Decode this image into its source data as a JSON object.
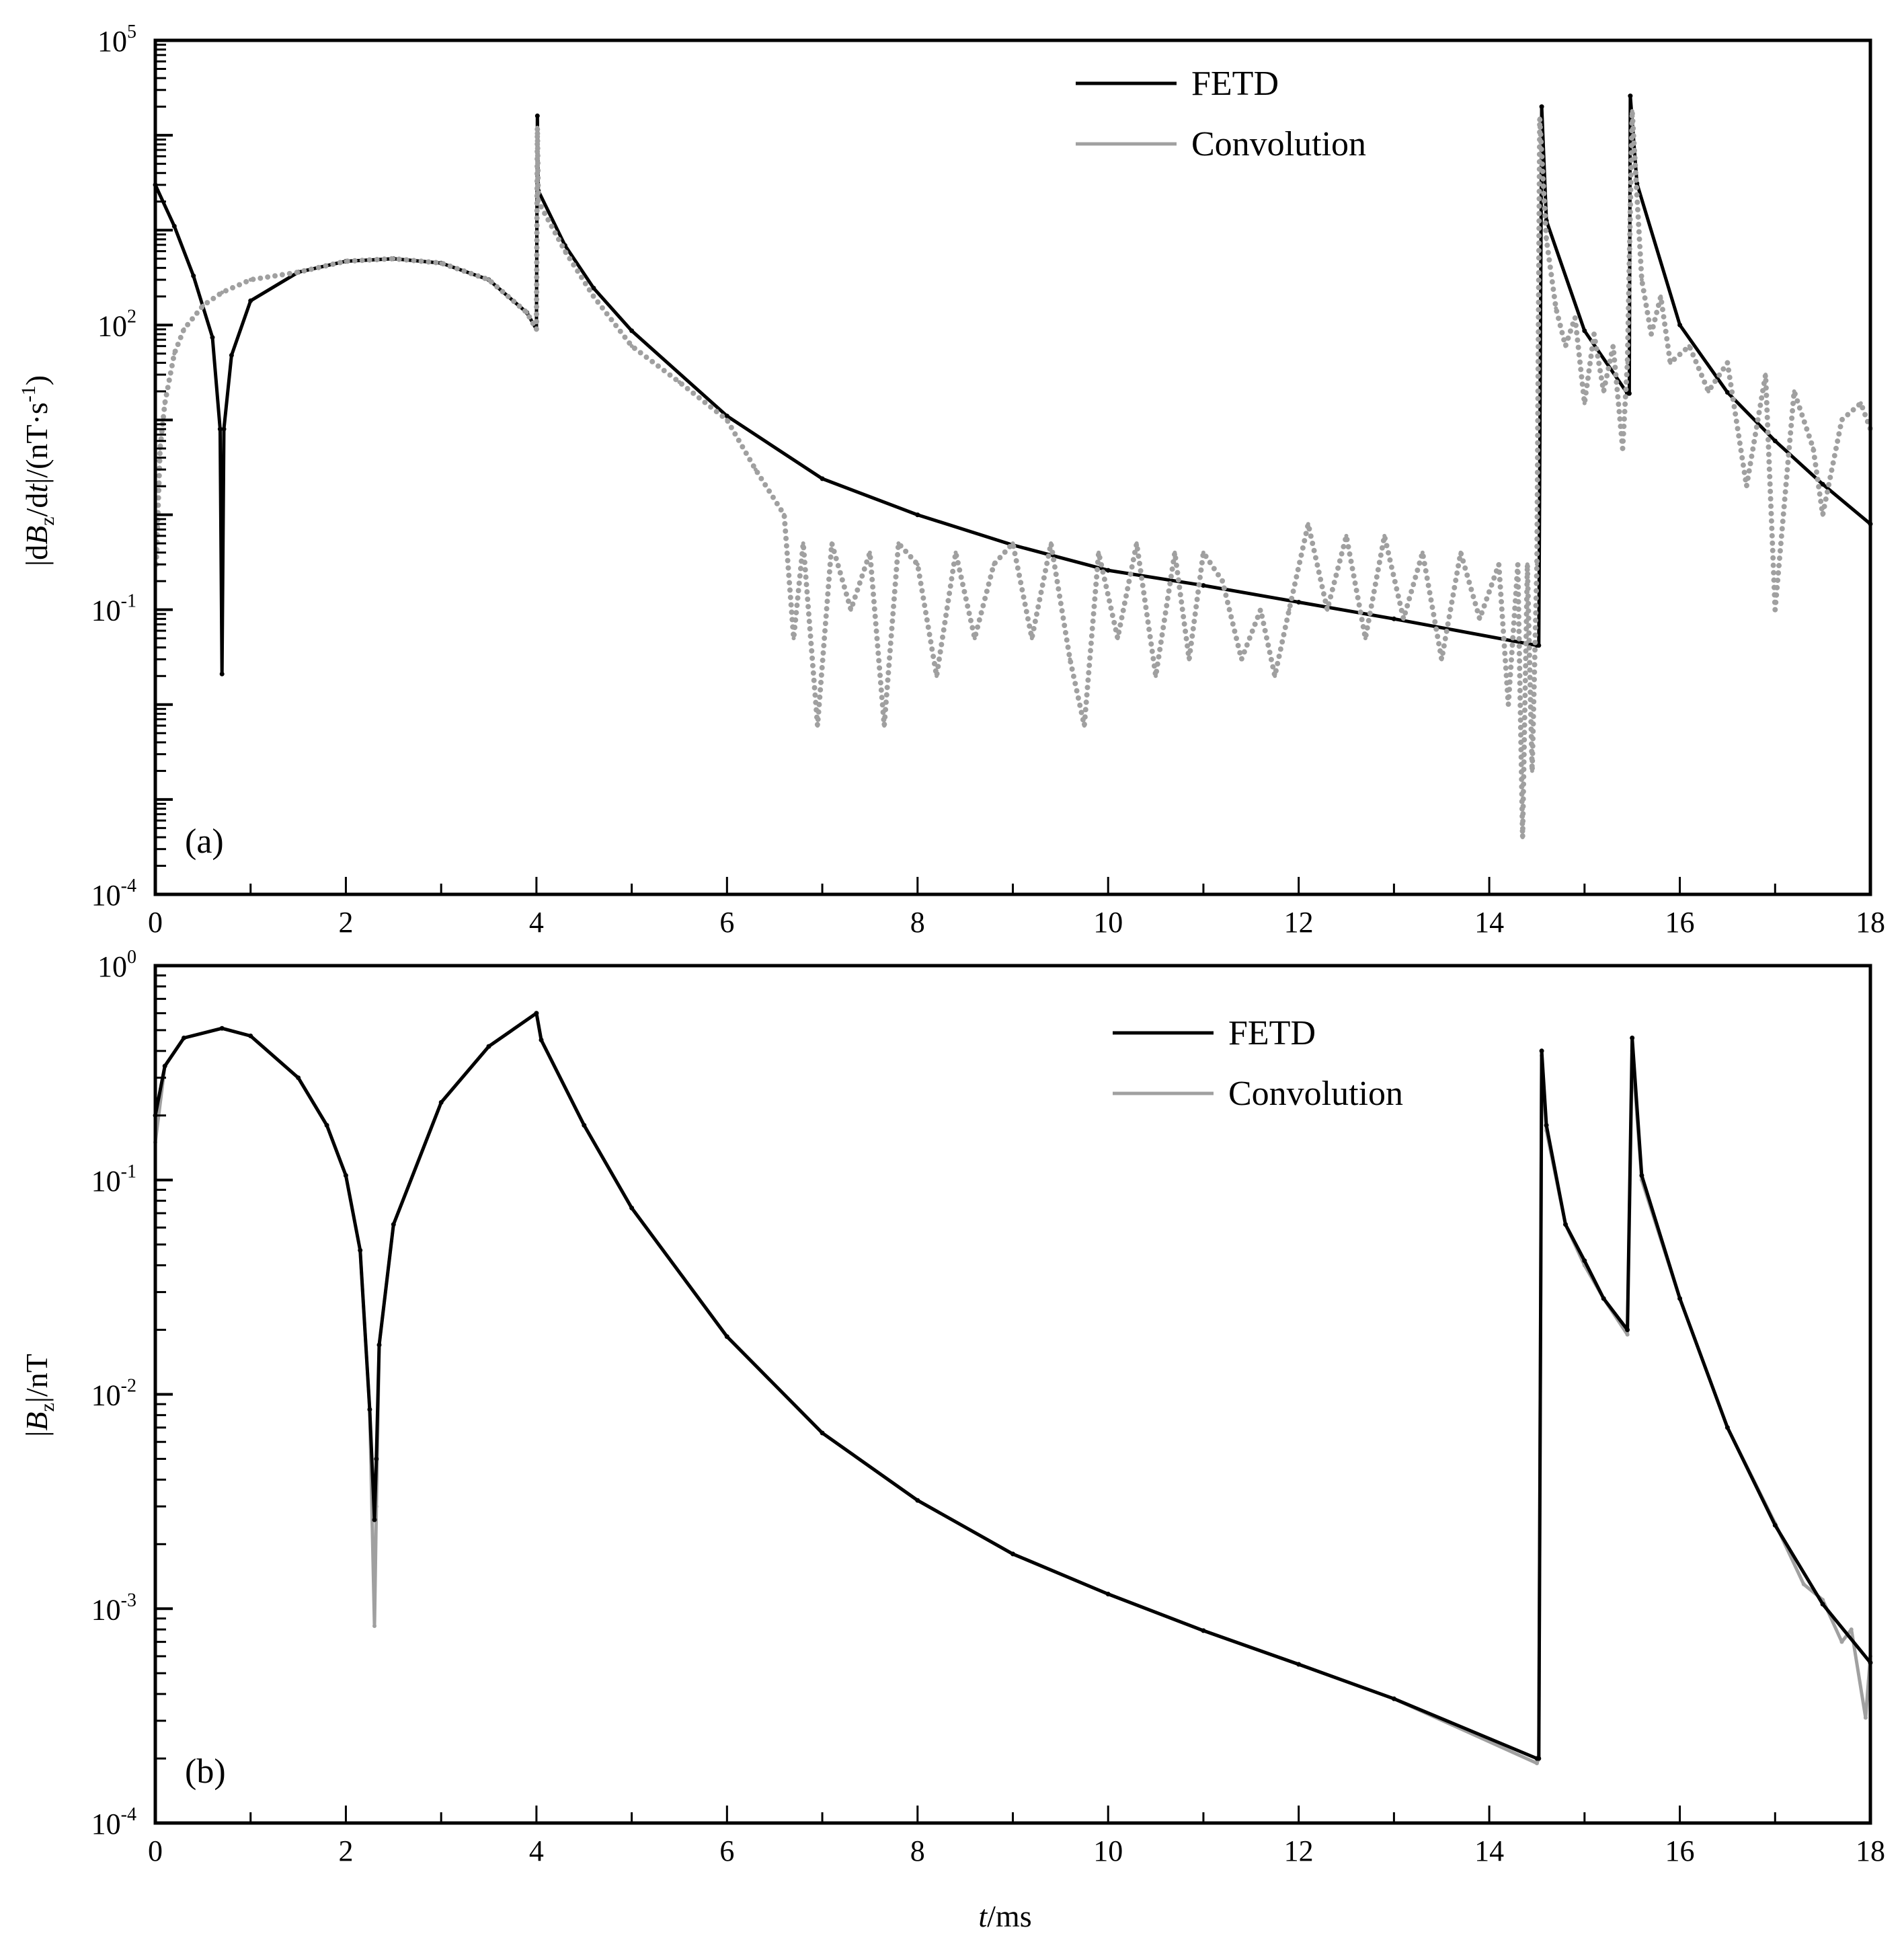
{
  "chart_data": [
    {
      "type": "line",
      "panel_label": "(a)",
      "ylabel": "|dBz/dt|/(nT·s-1)",
      "ylabel_parts": {
        "pre": "|d",
        "B": "B",
        "z": "z",
        "mid": "/d",
        "t": "t",
        "post": "|/(nT·s",
        "exp": "-1",
        "close": ")"
      },
      "xlabel": "",
      "y_scale": "log",
      "ylim": [
        0.0001,
        100000
      ],
      "xlim": [
        0,
        18
      ],
      "y_tick_labels": [
        {
          "base": "10",
          "exp": "5",
          "value": 100000
        },
        {
          "base": "10",
          "exp": "2",
          "value": 100
        },
        {
          "base": "10",
          "exp": "-1",
          "value": 0.1
        },
        {
          "base": "10",
          "exp": "-4",
          "value": 0.0001
        }
      ],
      "x_tick_labels": [
        "0",
        "2",
        "4",
        "6",
        "8",
        "10",
        "12",
        "14",
        "16",
        "18"
      ],
      "legend": {
        "placement": "top-right",
        "entries": [
          "FETD",
          "Convolution"
        ]
      },
      "grid": false,
      "series": [
        {
          "name": "FETD",
          "color": "#000000",
          "points": [
            [
              0,
              3000
            ],
            [
              0.2,
              1100
            ],
            [
              0.4,
              330
            ],
            [
              0.6,
              74
            ],
            [
              0.68,
              8
            ],
            [
              0.7,
              0.021
            ],
            [
              0.72,
              8
            ],
            [
              0.8,
              48
            ],
            [
              1.0,
              180
            ],
            [
              1.5,
              360
            ],
            [
              2.0,
              470
            ],
            [
              2.5,
              500
            ],
            [
              3.0,
              450
            ],
            [
              3.5,
              300
            ],
            [
              3.9,
              135
            ],
            [
              4.0,
              90
            ],
            [
              4.01,
              16000
            ],
            [
              4.02,
              2600
            ],
            [
              4.3,
              690
            ],
            [
              4.6,
              245
            ],
            [
              5.0,
              87
            ],
            [
              6.0,
              11
            ],
            [
              7.0,
              2.4
            ],
            [
              8.0,
              1.0
            ],
            [
              9.0,
              0.48
            ],
            [
              10.0,
              0.26
            ],
            [
              11.0,
              0.18
            ],
            [
              12.0,
              0.12
            ],
            [
              13.0,
              0.08
            ],
            [
              14.5,
              0.042
            ],
            [
              14.52,
              0.042
            ],
            [
              14.55,
              20000
            ],
            [
              14.6,
              1260
            ],
            [
              15.0,
              87
            ],
            [
              15.45,
              19
            ],
            [
              15.47,
              19
            ],
            [
              15.48,
              26000
            ],
            [
              15.55,
              3100
            ],
            [
              16.0,
              100
            ],
            [
              16.5,
              19.5
            ],
            [
              17.0,
              6
            ],
            [
              17.5,
              2.1
            ],
            [
              18.0,
              0.8
            ]
          ]
        },
        {
          "name": "Convolution",
          "color": "#a0a0a0",
          "points": [
            [
              0.01,
              0.3
            ],
            [
              0.05,
              5
            ],
            [
              0.1,
              15
            ],
            [
              0.2,
              50
            ],
            [
              0.3,
              90
            ],
            [
              0.5,
              160
            ],
            [
              0.7,
              220
            ],
            [
              1.0,
              300
            ],
            [
              1.5,
              360
            ],
            [
              2.0,
              470
            ],
            [
              2.5,
              500
            ],
            [
              3.0,
              450
            ],
            [
              3.5,
              300
            ],
            [
              3.9,
              135
            ],
            [
              4.0,
              90
            ],
            [
              4.01,
              12000
            ],
            [
              4.02,
              2000
            ],
            [
              4.3,
              600
            ],
            [
              4.6,
              200
            ],
            [
              5.0,
              60
            ],
            [
              5.5,
              25
            ],
            [
              6.0,
              10
            ],
            [
              6.3,
              3
            ],
            [
              6.6,
              1
            ],
            [
              6.7,
              0.05
            ],
            [
              6.8,
              0.5
            ],
            [
              6.95,
              0.006
            ],
            [
              7.1,
              0.5
            ],
            [
              7.3,
              0.1
            ],
            [
              7.5,
              0.4
            ],
            [
              7.65,
              0.006
            ],
            [
              7.8,
              0.5
            ],
            [
              8.0,
              0.3
            ],
            [
              8.2,
              0.02
            ],
            [
              8.4,
              0.4
            ],
            [
              8.6,
              0.05
            ],
            [
              8.8,
              0.3
            ],
            [
              9.0,
              0.5
            ],
            [
              9.2,
              0.05
            ],
            [
              9.4,
              0.5
            ],
            [
              9.6,
              0.03
            ],
            [
              9.75,
              0.006
            ],
            [
              9.9,
              0.4
            ],
            [
              10.1,
              0.05
            ],
            [
              10.3,
              0.5
            ],
            [
              10.5,
              0.02
            ],
            [
              10.7,
              0.4
            ],
            [
              10.85,
              0.03
            ],
            [
              11.0,
              0.4
            ],
            [
              11.2,
              0.2
            ],
            [
              11.4,
              0.03
            ],
            [
              11.6,
              0.1
            ],
            [
              11.75,
              0.02
            ],
            [
              11.9,
              0.1
            ],
            [
              12.1,
              0.8
            ],
            [
              12.3,
              0.1
            ],
            [
              12.5,
              0.6
            ],
            [
              12.7,
              0.05
            ],
            [
              12.9,
              0.6
            ],
            [
              13.1,
              0.08
            ],
            [
              13.3,
              0.4
            ],
            [
              13.5,
              0.03
            ],
            [
              13.7,
              0.4
            ],
            [
              13.9,
              0.08
            ],
            [
              14.1,
              0.3
            ],
            [
              14.2,
              0.01
            ],
            [
              14.3,
              0.3
            ],
            [
              14.35,
              0.0004
            ],
            [
              14.4,
              0.3
            ],
            [
              14.45,
              0.002
            ],
            [
              14.5,
              0.3
            ],
            [
              14.53,
              15000
            ],
            [
              14.6,
              800
            ],
            [
              14.7,
              150
            ],
            [
              14.8,
              60
            ],
            [
              14.9,
              120
            ],
            [
              15.0,
              15
            ],
            [
              15.1,
              80
            ],
            [
              15.2,
              20
            ],
            [
              15.3,
              60
            ],
            [
              15.4,
              5
            ],
            [
              15.45,
              40
            ],
            [
              15.5,
              18000
            ],
            [
              15.6,
              300
            ],
            [
              15.7,
              80
            ],
            [
              15.8,
              200
            ],
            [
              15.9,
              40
            ],
            [
              16.1,
              60
            ],
            [
              16.3,
              20
            ],
            [
              16.5,
              40
            ],
            [
              16.7,
              2
            ],
            [
              16.9,
              30
            ],
            [
              17.0,
              0.1
            ],
            [
              17.2,
              20
            ],
            [
              17.4,
              5
            ],
            [
              17.5,
              1
            ],
            [
              17.7,
              10
            ],
            [
              17.9,
              15
            ],
            [
              18.0,
              8
            ]
          ]
        }
      ]
    },
    {
      "type": "line",
      "panel_label": "(b)",
      "ylabel": "|Bz|/nT",
      "ylabel_parts": {
        "pre": "|",
        "B": "B",
        "z": "z",
        "post": "|/nT"
      },
      "xlabel": "t/ms",
      "xlabel_parts": {
        "t": "t",
        "unit": "/ms"
      },
      "y_scale": "log",
      "ylim": [
        0.0001,
        1
      ],
      "xlim": [
        0,
        18
      ],
      "y_tick_labels": [
        {
          "base": "10",
          "exp": "0",
          "value": 1
        },
        {
          "base": "10",
          "exp": "-1",
          "value": 0.1
        },
        {
          "base": "10",
          "exp": "-2",
          "value": 0.01
        },
        {
          "base": "10",
          "exp": "-3",
          "value": 0.001
        },
        {
          "base": "10",
          "exp": "-4",
          "value": 0.0001
        }
      ],
      "x_tick_labels": [
        "0",
        "2",
        "4",
        "6",
        "8",
        "10",
        "12",
        "14",
        "16",
        "18"
      ],
      "legend": {
        "placement": "top-right",
        "entries": [
          "FETD",
          "Convolution"
        ]
      },
      "grid": false,
      "series": [
        {
          "name": "Convolution",
          "color": "#a0a0a0",
          "points": [
            [
              0,
              0.15
            ],
            [
              0.1,
              0.34
            ],
            [
              0.3,
              0.46
            ],
            [
              0.7,
              0.51
            ],
            [
              1.0,
              0.47
            ],
            [
              1.5,
              0.3
            ],
            [
              1.8,
              0.18
            ],
            [
              2.0,
              0.105
            ],
            [
              2.15,
              0.047
            ],
            [
              2.25,
              0.0085
            ],
            [
              2.3,
              0.00083
            ],
            [
              2.32,
              0.003
            ],
            [
              2.35,
              0.017
            ],
            [
              2.5,
              0.062
            ],
            [
              3.0,
              0.23
            ],
            [
              3.5,
              0.42
            ],
            [
              4.0,
              0.6
            ],
            [
              4.05,
              0.45
            ],
            [
              4.5,
              0.18
            ],
            [
              5.0,
              0.074
            ],
            [
              6.0,
              0.0186
            ],
            [
              7.0,
              0.0066
            ],
            [
              8.0,
              0.0032
            ],
            [
              9.0,
              0.0018
            ],
            [
              10.0,
              0.00117
            ],
            [
              11.0,
              0.00079
            ],
            [
              12.0,
              0.00055
            ],
            [
              13.0,
              0.00038
            ],
            [
              14.5,
              0.00019
            ],
            [
              14.52,
              0.0002
            ],
            [
              14.55,
              0.38
            ],
            [
              14.6,
              0.17
            ],
            [
              14.8,
              0.062
            ],
            [
              15.0,
              0.04
            ],
            [
              15.2,
              0.028
            ],
            [
              15.45,
              0.019
            ],
            [
              15.5,
              0.4
            ],
            [
              15.6,
              0.1
            ],
            [
              16.0,
              0.028
            ],
            [
              16.5,
              0.007
            ],
            [
              17.0,
              0.0025
            ],
            [
              17.3,
              0.0013
            ],
            [
              17.5,
              0.0011
            ],
            [
              17.7,
              0.0007
            ],
            [
              17.8,
              0.0008
            ],
            [
              17.95,
              0.00031
            ],
            [
              18.0,
              0.0006
            ]
          ]
        },
        {
          "name": "FETD",
          "color": "#000000",
          "points": [
            [
              0,
              0.2
            ],
            [
              0.1,
              0.34
            ],
            [
              0.3,
              0.46
            ],
            [
              0.7,
              0.51
            ],
            [
              1.0,
              0.47
            ],
            [
              1.5,
              0.3
            ],
            [
              1.8,
              0.18
            ],
            [
              2.0,
              0.105
            ],
            [
              2.15,
              0.047
            ],
            [
              2.25,
              0.0085
            ],
            [
              2.3,
              0.0026
            ],
            [
              2.32,
              0.005
            ],
            [
              2.35,
              0.017
            ],
            [
              2.5,
              0.062
            ],
            [
              3.0,
              0.23
            ],
            [
              3.5,
              0.42
            ],
            [
              4.0,
              0.6
            ],
            [
              4.05,
              0.45
            ],
            [
              4.5,
              0.18
            ],
            [
              5.0,
              0.074
            ],
            [
              6.0,
              0.0186
            ],
            [
              7.0,
              0.0066
            ],
            [
              8.0,
              0.0032
            ],
            [
              9.0,
              0.0018
            ],
            [
              10.0,
              0.00117
            ],
            [
              11.0,
              0.00079
            ],
            [
              12.0,
              0.00055
            ],
            [
              13.0,
              0.00038
            ],
            [
              14.5,
              0.0002
            ],
            [
              14.52,
              0.0002
            ],
            [
              14.55,
              0.4
            ],
            [
              14.6,
              0.18
            ],
            [
              14.8,
              0.062
            ],
            [
              15.0,
              0.042
            ],
            [
              15.2,
              0.028
            ],
            [
              15.45,
              0.02
            ],
            [
              15.5,
              0.46
            ],
            [
              15.6,
              0.105
            ],
            [
              16.0,
              0.028
            ],
            [
              16.5,
              0.007
            ],
            [
              17.0,
              0.00245
            ],
            [
              17.5,
              0.00105
            ],
            [
              18.0,
              0.00056
            ]
          ]
        }
      ]
    }
  ]
}
